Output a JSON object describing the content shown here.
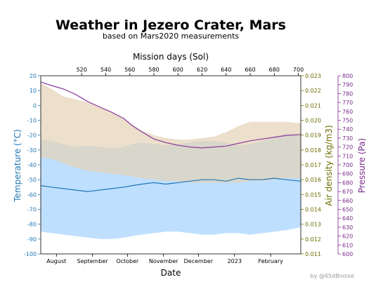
{
  "chart_data": {
    "type": "area",
    "title": "Weather in Jezero Crater, Mars",
    "subtitle": "based on Mars2020 measurements",
    "top_axis": {
      "label": "Mission days (Sol)",
      "range": [
        486,
        702
      ],
      "ticks": [
        520,
        540,
        560,
        580,
        600,
        620,
        640,
        660,
        680,
        700
      ]
    },
    "xlabel": "Date",
    "x_ticks": [
      {
        "label": "August",
        "sol": 499
      },
      {
        "label": "September",
        "sol": 529
      },
      {
        "label": "October",
        "sol": 558
      },
      {
        "label": "November",
        "sol": 588
      },
      {
        "label": "December",
        "sol": 617
      },
      {
        "label": "2023",
        "sol": 647
      },
      {
        "label": "February",
        "sol": 677
      }
    ],
    "axes": {
      "temperature": {
        "label": "Temperature (°C)",
        "range": [
          -100,
          20
        ],
        "ticks": [
          20,
          10,
          0,
          -10,
          -20,
          -30,
          -40,
          -50,
          -60,
          -70,
          -80,
          -90,
          -100
        ],
        "color": "#1f77b4"
      },
      "air_density": {
        "label": "Air density (kg/m3)",
        "range": [
          0.011,
          0.023
        ],
        "ticks": [
          "0.023",
          "0.022",
          "0.021",
          "0.020",
          "0.019",
          "0.018",
          "0.017",
          "0.016",
          "0.015",
          "0.014",
          "0.013",
          "0.012",
          "0.011"
        ],
        "color": "#6b6b00"
      },
      "pressure": {
        "label": "Pressure (Pa)",
        "range": [
          600,
          800
        ],
        "ticks": [
          800,
          790,
          780,
          770,
          760,
          750,
          740,
          730,
          720,
          710,
          700,
          690,
          680,
          670,
          660,
          650,
          640,
          630,
          620,
          610,
          600
        ],
        "color": "#7b2a8b"
      }
    },
    "x": [
      486,
      495,
      505,
      515,
      525,
      535,
      545,
      555,
      562,
      570,
      580,
      590,
      600,
      610,
      620,
      630,
      640,
      650,
      660,
      670,
      680,
      690,
      702
    ],
    "series": [
      {
        "axis": "temperature",
        "color": "#bfdfff",
        "upper": [
          -23,
          -24,
          -26,
          -28,
          -27,
          -28,
          -29,
          -28,
          -26,
          -25,
          -26,
          -27,
          -26,
          -25,
          -24,
          -24,
          -25,
          -27,
          -26,
          -24,
          -21,
          -19,
          -19
        ],
        "lower": [
          -85,
          -86,
          -87,
          -88,
          -89,
          -90,
          -90,
          -89,
          -88,
          -87,
          -86,
          -85,
          -85,
          -86,
          -87,
          -87,
          -86,
          -86,
          -87,
          -86,
          -85,
          -84,
          -82
        ]
      },
      {
        "axis": "air_density",
        "color": "#e4d1b5",
        "upper": [
          0.0225,
          0.0221,
          0.0216,
          0.0214,
          0.0212,
          0.0209,
          0.0205,
          0.0201,
          0.0197,
          0.0193,
          0.019,
          0.0188,
          0.0187,
          0.0187,
          0.0188,
          0.0189,
          0.0192,
          0.0196,
          0.0199,
          0.0199,
          0.0199,
          0.0199,
          0.0198
        ],
        "lower": [
          0.0175,
          0.0174,
          0.0171,
          0.0168,
          0.0166,
          0.0165,
          0.0164,
          0.0163,
          0.0162,
          0.0161,
          0.016,
          0.0159,
          0.0159,
          0.0158,
          0.0158,
          0.0158,
          0.0158,
          0.0158,
          0.0159,
          0.0159,
          0.016,
          0.0161,
          0.0161
        ]
      },
      {
        "axis": "temperature",
        "color": "#1f77b4",
        "values": [
          -54,
          -55,
          -56,
          -57,
          -58,
          -57,
          -56,
          -55,
          -54,
          -53,
          -52,
          -53,
          -52,
          -51,
          -50,
          -50,
          -51,
          -49,
          -50,
          -50,
          -49,
          -50,
          -51
        ]
      },
      {
        "axis": "pressure",
        "color": "#8b3a9e",
        "values": [
          793,
          789,
          785,
          779,
          771,
          765,
          759,
          752,
          744,
          737,
          729,
          725,
          722,
          720,
          719,
          720,
          721,
          724,
          727,
          729,
          731,
          733,
          734
        ]
      }
    ],
    "credit": "by @65dBnoise",
    "grid": false
  }
}
